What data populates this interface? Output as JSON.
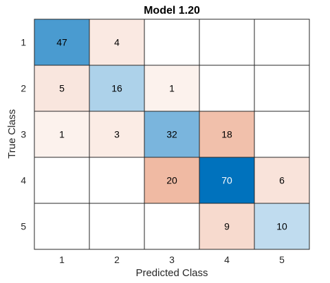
{
  "chart_data": {
    "type": "heatmap",
    "title": "Model 1.20",
    "xlabel": "Predicted Class",
    "ylabel": "True Class",
    "x_categories": [
      "1",
      "2",
      "3",
      "4",
      "5"
    ],
    "y_categories": [
      "1",
      "2",
      "3",
      "4",
      "5"
    ],
    "matrix": [
      [
        47,
        4,
        null,
        null,
        null
      ],
      [
        5,
        16,
        1,
        null,
        null
      ],
      [
        1,
        3,
        32,
        18,
        null
      ],
      [
        null,
        null,
        20,
        70,
        6
      ],
      [
        null,
        null,
        null,
        9,
        10
      ]
    ],
    "colors": {
      "diagonal": "#0072bd",
      "off_diagonal": "#d95319",
      "grid": "#262626"
    }
  }
}
